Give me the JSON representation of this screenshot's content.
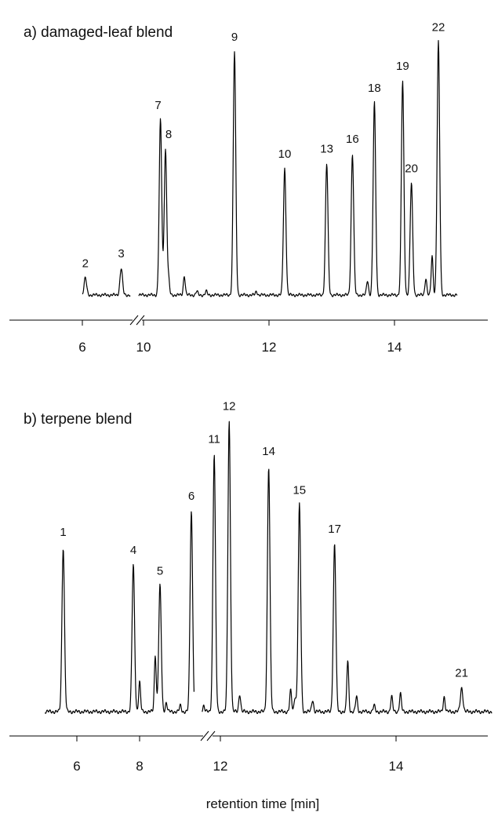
{
  "chart_data": [
    {
      "type": "line",
      "panel": "a",
      "title": "a) damaged-leaf blend",
      "xlabel": "",
      "ylabel": "",
      "xaxis_break": [
        6.8,
        9.6
      ],
      "x_ticks": [
        6,
        10,
        12,
        14
      ],
      "segments": [
        {
          "x_start": 6.0,
          "x_end": 7.0
        },
        {
          "x_start": 9.8,
          "x_end": 15.0
        }
      ],
      "peaks": [
        {
          "label": "2",
          "rt": 6.05,
          "height": 0.07
        },
        {
          "label": "3",
          "rt": 6.65,
          "height": 0.11
        },
        {
          "label": "7",
          "rt": 10.27,
          "height": 0.72
        },
        {
          "label": "8",
          "rt": 10.35,
          "height": 0.6
        },
        {
          "label": "9",
          "rt": 11.45,
          "height": 1.0
        },
        {
          "label": "10",
          "rt": 12.25,
          "height": 0.52
        },
        {
          "label": "13",
          "rt": 12.92,
          "height": 0.54
        },
        {
          "label": "16",
          "rt": 13.33,
          "height": 0.58
        },
        {
          "label": "18",
          "rt": 13.68,
          "height": 0.79
        },
        {
          "label": "19",
          "rt": 14.13,
          "height": 0.88
        },
        {
          "label": "20",
          "rt": 14.27,
          "height": 0.46
        },
        {
          "label": "22",
          "rt": 14.7,
          "height": 1.04
        }
      ],
      "minor_peaks": [
        {
          "rt": 10.4,
          "height": 0.06
        },
        {
          "rt": 10.65,
          "height": 0.08
        },
        {
          "rt": 10.85,
          "height": 0.015
        },
        {
          "rt": 11.0,
          "height": 0.015
        },
        {
          "rt": 11.8,
          "height": 0.015
        },
        {
          "rt": 13.57,
          "height": 0.06
        },
        {
          "rt": 14.5,
          "height": 0.07
        },
        {
          "rt": 14.6,
          "height": 0.16
        }
      ]
    },
    {
      "type": "line",
      "panel": "b",
      "title": "b) terpene blend",
      "xlabel": "retention time [min]",
      "ylabel": "",
      "xaxis_break": [
        9.7,
        11.6
      ],
      "x_ticks": [
        6,
        8,
        12,
        14
      ],
      "segments": [
        {
          "x_start": 5.3,
          "x_end": 9.9
        },
        {
          "x_start": 11.3,
          "x_end": 15.1
        }
      ],
      "peaks": [
        {
          "label": "1",
          "rt": 5.7,
          "height": 0.55
        },
        {
          "label": "4",
          "rt": 7.8,
          "height": 0.49
        },
        {
          "label": "5",
          "rt": 8.65,
          "height": 0.42
        },
        {
          "label": "6",
          "rt": 9.65,
          "height": 0.67
        },
        {
          "label": "11",
          "rt": 11.85,
          "height": 0.86
        },
        {
          "label": "12",
          "rt": 12.1,
          "height": 0.97
        },
        {
          "label": "14",
          "rt": 12.55,
          "height": 0.82
        },
        {
          "label": "15",
          "rt": 12.9,
          "height": 0.69
        },
        {
          "label": "17",
          "rt": 13.3,
          "height": 0.56
        },
        {
          "label": "21",
          "rt": 14.75,
          "height": 0.08
        }
      ],
      "minor_peaks": [
        {
          "rt": 8.0,
          "height": 0.1
        },
        {
          "rt": 8.5,
          "height": 0.19
        },
        {
          "rt": 8.85,
          "height": 0.03
        },
        {
          "rt": 9.3,
          "height": 0.02
        },
        {
          "rt": 11.55,
          "height": 0.02
        },
        {
          "rt": 12.22,
          "height": 0.06
        },
        {
          "rt": 12.8,
          "height": 0.07
        },
        {
          "rt": 12.85,
          "height": 0.05
        },
        {
          "rt": 13.05,
          "height": 0.04
        },
        {
          "rt": 13.45,
          "height": 0.17
        },
        {
          "rt": 13.55,
          "height": 0.05
        },
        {
          "rt": 13.75,
          "height": 0.02
        },
        {
          "rt": 13.95,
          "height": 0.05
        },
        {
          "rt": 14.05,
          "height": 0.06
        },
        {
          "rt": 14.55,
          "height": 0.05
        }
      ]
    }
  ]
}
